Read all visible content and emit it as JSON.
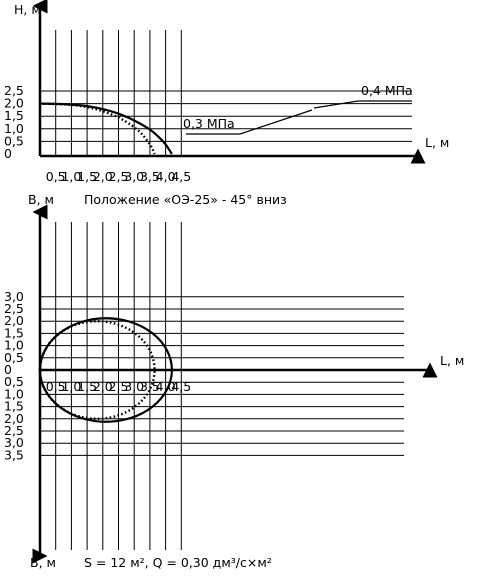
{
  "chart_data": [
    {
      "type": "line",
      "xlabel": "L, м",
      "ylabel": "H, м",
      "xlim": [
        0,
        5
      ],
      "ylim": [
        0,
        2.5
      ],
      "x_ticks": [
        "0,5",
        "1,0",
        "1,5",
        "2,0",
        "2,5",
        "3,0",
        "3,5",
        "4,0",
        "4,5"
      ],
      "y_ticks": [
        "2,5",
        "2,0",
        "1,5",
        "1,0",
        "0,5",
        "0"
      ],
      "grid": true,
      "series": [
        {
          "name": "0,4 МПа",
          "style": "solid",
          "x": [
            0,
            0.5,
            1.0,
            1.5,
            2.0,
            2.5,
            3.0,
            3.5,
            3.8,
            4.0,
            4.1,
            4.2
          ],
          "y": [
            2.0,
            1.99,
            1.96,
            1.9,
            1.78,
            1.6,
            1.33,
            0.97,
            0.65,
            0.38,
            0.2,
            0
          ]
        },
        {
          "name": "0,3 МПа",
          "style": "dotted",
          "x": [
            0,
            0.5,
            1.0,
            1.5,
            2.0,
            2.5,
            2.9,
            3.2,
            3.4,
            3.55,
            3.65
          ],
          "y": [
            2.0,
            1.98,
            1.95,
            1.86,
            1.7,
            1.45,
            1.15,
            0.85,
            0.55,
            0.28,
            0
          ]
        }
      ],
      "annotations": [
        "0,4 МПа",
        "0,3 МПа"
      ]
    },
    {
      "type": "line",
      "title": "Положение «ОЭ-25» - 45° вниз",
      "xlabel": "L, м",
      "ylabel_top": "B, м",
      "ylabel_bottom": "B, м",
      "xlim": [
        0,
        5
      ],
      "ylim": [
        -3.5,
        3.0
      ],
      "x_ticks": [
        "0,5",
        "1,0",
        "1,5",
        "2,0",
        "2,5",
        "3,0",
        "3,5",
        "4,0",
        "4,5"
      ],
      "y_ticks_top": [
        "3,0",
        "2,5",
        "2,0",
        "1,5",
        "1,0",
        "0,5",
        "0"
      ],
      "y_ticks_bottom": [
        "0,5",
        "1,0",
        "1,5",
        "2,0",
        "2,5",
        "3,0",
        "3,5"
      ],
      "grid": true,
      "series": [
        {
          "name": "0,4 МПа",
          "style": "solid",
          "shape": "ellipse",
          "x_range": [
            0.0,
            4.2
          ],
          "b_half_width": 2.12
        },
        {
          "name": "0,3 МПа",
          "style": "dotted",
          "shape": "ellipse",
          "x_range": [
            0.0,
            3.65
          ],
          "b_half_width": 2.0
        }
      ],
      "footnote": "S = 12 м², Q = 0,30 дм³/с×м²"
    }
  ]
}
